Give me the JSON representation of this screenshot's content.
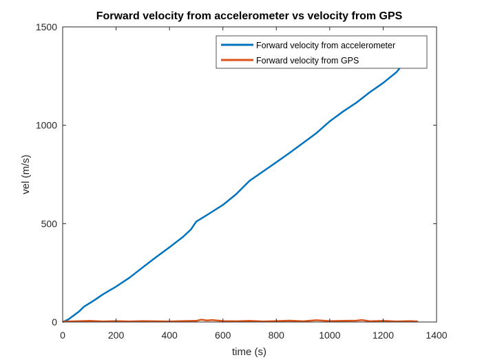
{
  "chart_data": {
    "type": "line",
    "title": "Forward velocity from accelerometer vs velocity from GPS",
    "xlabel": "time (s)",
    "ylabel": "vel (m/s)",
    "xlim": [
      0,
      1400
    ],
    "ylim": [
      0,
      1500
    ],
    "xticks": [
      0,
      200,
      400,
      600,
      800,
      1000,
      1200,
      1400
    ],
    "yticks": [
      0,
      500,
      1000,
      1500
    ],
    "grid": false,
    "legend_position": "top-right",
    "series": [
      {
        "name": "Forward velocity from accelerometer",
        "color": "#0072BD",
        "x": [
          0,
          20,
          40,
          60,
          80,
          100,
          120,
          150,
          200,
          250,
          300,
          350,
          400,
          450,
          480,
          500,
          530,
          550,
          600,
          650,
          700,
          750,
          800,
          850,
          900,
          950,
          1000,
          1050,
          1100,
          1150,
          1200,
          1250,
          1262
        ],
        "y": [
          0,
          12,
          32,
          52,
          78,
          95,
          112,
          140,
          180,
          225,
          278,
          330,
          380,
          432,
          470,
          510,
          535,
          552,
          595,
          650,
          718,
          765,
          812,
          860,
          910,
          960,
          1020,
          1070,
          1115,
          1168,
          1215,
          1270,
          1290
        ]
      },
      {
        "name": "Forward velocity from GPS",
        "color": "#D95319",
        "x": [
          0,
          50,
          100,
          150,
          200,
          250,
          300,
          350,
          400,
          450,
          500,
          520,
          540,
          560,
          600,
          650,
          700,
          750,
          800,
          850,
          900,
          950,
          1000,
          1050,
          1100,
          1120,
          1150,
          1200,
          1250,
          1300,
          1330
        ],
        "y": [
          2,
          4,
          6,
          3,
          5,
          3,
          5,
          4,
          3,
          5,
          6,
          12,
          8,
          10,
          5,
          4,
          6,
          3,
          5,
          7,
          4,
          9,
          5,
          6,
          7,
          10,
          4,
          6,
          3,
          5,
          3
        ]
      }
    ]
  }
}
